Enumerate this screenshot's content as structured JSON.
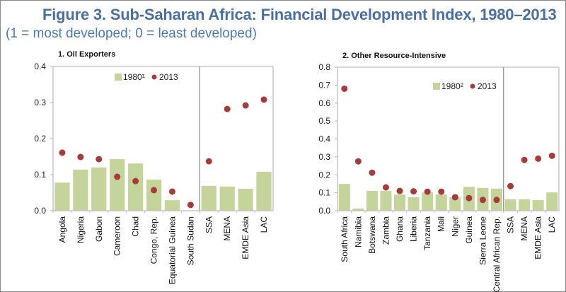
{
  "header": {
    "title": "Figure 3. Sub-Saharan Africa: Financial Development Index, 1980–2013",
    "subtitle": "(1 = most developed; 0 = least developed)"
  },
  "colors": {
    "bar": "#c4d49a",
    "dot": "#a83a3a",
    "title": "#4a6fa5",
    "divider": "#8a8a8a"
  },
  "chart_data": [
    {
      "type": "bar",
      "title": "1. Oil Exporters",
      "xlabel": "",
      "ylabel": "",
      "ylim": [
        0,
        0.4
      ],
      "yticks": [
        "0.0",
        "0.1",
        "0.2",
        "0.3",
        "0.4"
      ],
      "legend_placement": "top-center",
      "grid": false,
      "divider_after_index": 7,
      "categories": [
        "Angola",
        "Nigeria",
        "Gabon",
        "Cameroon",
        "Chad",
        "Congo, Rep.",
        "Equatorial Guinea",
        "South Sudan",
        "SSA",
        "MENA",
        "EMDE Asia",
        "LAC"
      ],
      "series": [
        {
          "name": "1980¹",
          "kind": "bar",
          "values": [
            0.078,
            0.114,
            0.12,
            0.143,
            0.131,
            0.086,
            0.029,
            null,
            0.069,
            0.067,
            0.061,
            0.108
          ]
        },
        {
          "name": "2013",
          "kind": "dot",
          "values": [
            0.161,
            0.149,
            0.143,
            0.094,
            0.082,
            0.057,
            0.053,
            0.016,
            0.137,
            0.282,
            0.292,
            0.308
          ]
        }
      ]
    },
    {
      "type": "bar",
      "title": "2. Other Resource-Intensive",
      "xlabel": "",
      "ylabel": "",
      "ylim": [
        0,
        0.8
      ],
      "yticks": [
        "0.0",
        "0.1",
        "0.2",
        "0.3",
        "0.4",
        "0.5",
        "0.6",
        "0.7",
        "0.8"
      ],
      "legend_placement": "top-right",
      "grid": false,
      "divider_after_index": 11,
      "categories": [
        "South Africa",
        "Namibia",
        "Botswana",
        "Zambia",
        "Ghana",
        "Liberia",
        "Tanzania",
        "Mali",
        "Niger",
        "Guinea",
        "Sierra Leone",
        "Central African Rep.",
        "SSA",
        "MENA",
        "EMDE Asia",
        "LAC"
      ],
      "series": [
        {
          "name": "1980²",
          "kind": "bar",
          "values": [
            0.149,
            0.012,
            0.11,
            0.11,
            0.09,
            0.075,
            0.102,
            0.09,
            0.075,
            0.133,
            0.127,
            0.123,
            0.063,
            0.063,
            0.059,
            0.102
          ]
        },
        {
          "name": "2013",
          "kind": "dot",
          "values": [
            0.68,
            0.275,
            0.212,
            0.13,
            0.11,
            0.108,
            0.106,
            0.106,
            0.075,
            0.07,
            0.06,
            0.06,
            0.137,
            0.283,
            0.29,
            0.306
          ]
        }
      ]
    }
  ]
}
